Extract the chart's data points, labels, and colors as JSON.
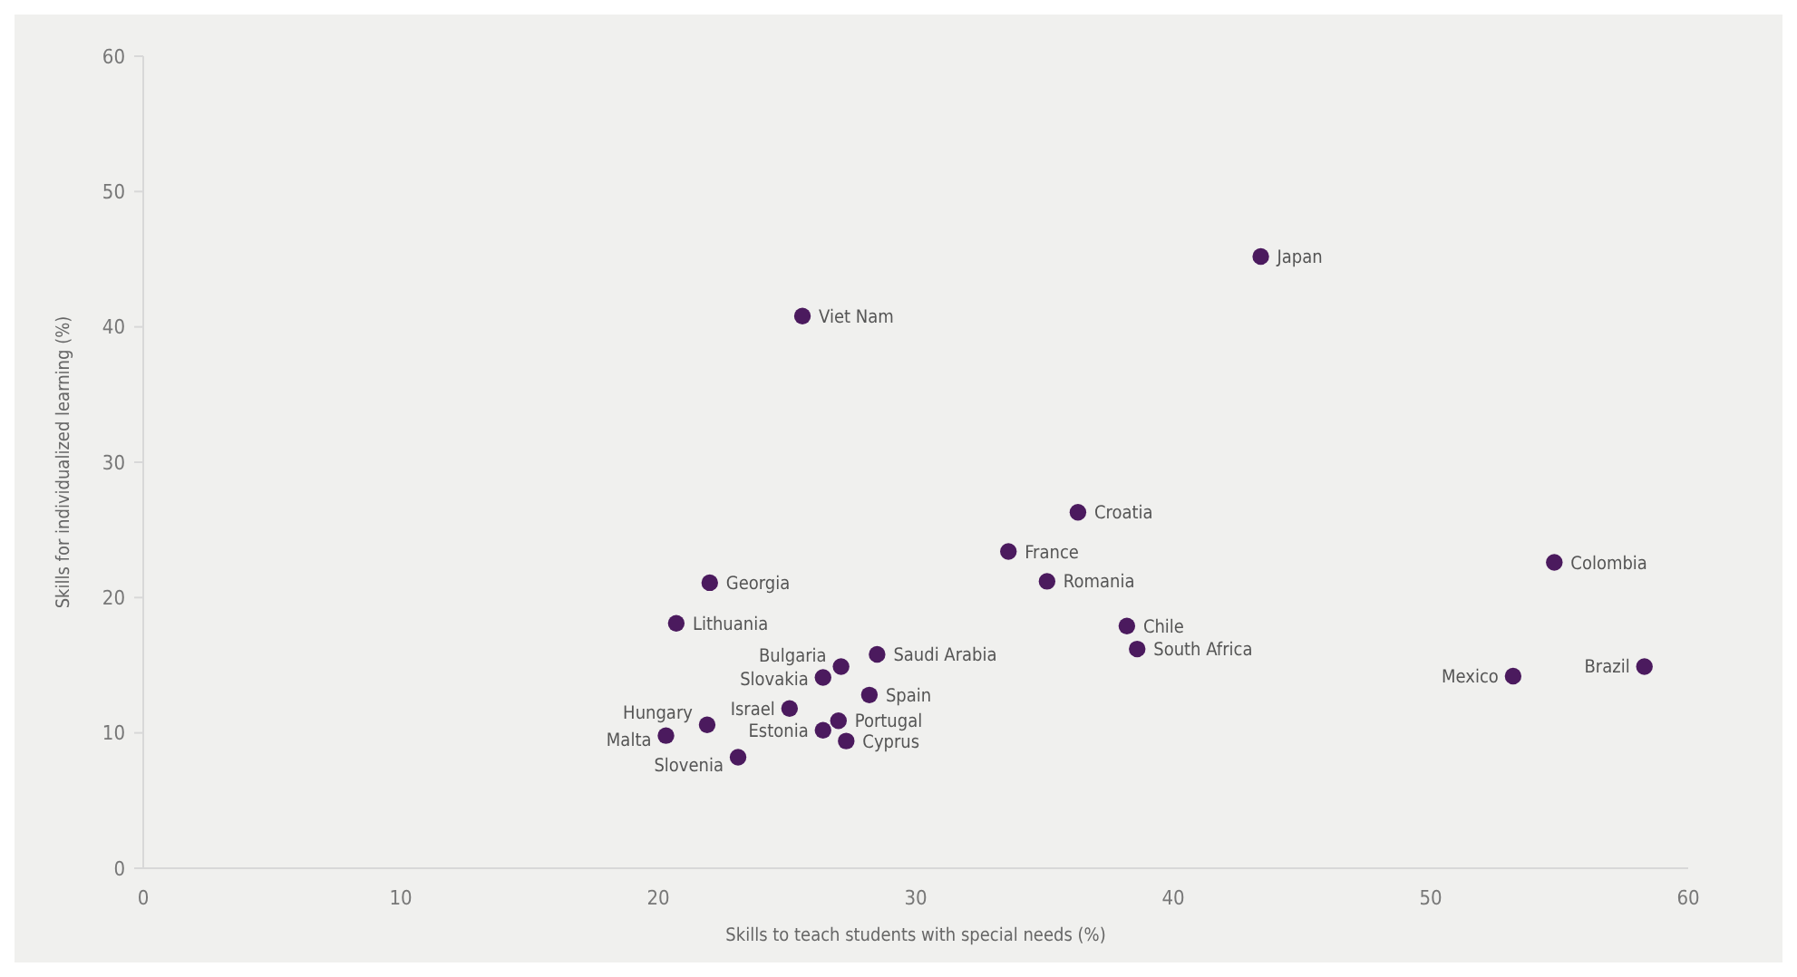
{
  "chart_data": {
    "type": "scatter",
    "xlabel": "Skills to teach students with special needs (%)",
    "ylabel": "Skills for individualized learning (%)",
    "xlim": [
      0,
      60
    ],
    "ylim": [
      0,
      60
    ],
    "xticks": [
      0,
      10,
      20,
      30,
      40,
      50,
      60
    ],
    "yticks": [
      0,
      10,
      20,
      30,
      40,
      50,
      60
    ],
    "grid": false,
    "marker": "circle",
    "series": [
      {
        "color": "#4b1a5e",
        "x": [
          43.4,
          25.6,
          36.3,
          33.6,
          35.1,
          54.8,
          22.0,
          20.7,
          38.2,
          38.6,
          53.2,
          58.3,
          28.5,
          27.1,
          26.4,
          28.2,
          25.1,
          21.9,
          27.0,
          26.4,
          20.3,
          27.3,
          23.1
        ],
        "values": [
          45.2,
          40.8,
          26.3,
          23.4,
          21.2,
          22.6,
          21.1,
          18.1,
          17.9,
          16.2,
          14.2,
          14.9,
          15.8,
          14.9,
          14.1,
          12.8,
          11.8,
          10.6,
          10.9,
          10.2,
          9.8,
          9.4,
          8.2
        ]
      }
    ],
    "annotations": [
      {
        "text": "Japan",
        "x": 43.4,
        "y": 45.2
      },
      {
        "text": "Viet Nam",
        "x": 25.6,
        "y": 40.8
      },
      {
        "text": "Croatia",
        "x": 36.3,
        "y": 26.3
      },
      {
        "text": "France",
        "x": 33.6,
        "y": 23.4
      },
      {
        "text": "Romania",
        "x": 35.1,
        "y": 21.2
      },
      {
        "text": "Colombia",
        "x": 54.8,
        "y": 22.6
      },
      {
        "text": "Georgia",
        "x": 22.0,
        "y": 21.1
      },
      {
        "text": "Lithuania",
        "x": 20.7,
        "y": 18.1
      },
      {
        "text": "Chile",
        "x": 38.2,
        "y": 17.9
      },
      {
        "text": "South Africa",
        "x": 38.6,
        "y": 16.2
      },
      {
        "text": "Mexico",
        "x": 53.2,
        "y": 14.2
      },
      {
        "text": "Brazil",
        "x": 58.3,
        "y": 14.9
      },
      {
        "text": "Saudi Arabia",
        "x": 28.5,
        "y": 15.8
      },
      {
        "text": "Bulgaria",
        "x": 27.1,
        "y": 14.9
      },
      {
        "text": "Slovakia",
        "x": 26.4,
        "y": 14.1
      },
      {
        "text": "Spain",
        "x": 28.2,
        "y": 12.8
      },
      {
        "text": "Israel",
        "x": 25.1,
        "y": 11.8
      },
      {
        "text": "Hungary",
        "x": 21.9,
        "y": 10.6
      },
      {
        "text": "Portugal",
        "x": 27.0,
        "y": 10.9
      },
      {
        "text": "Estonia",
        "x": 26.4,
        "y": 10.2
      },
      {
        "text": "Malta",
        "x": 20.3,
        "y": 9.8
      },
      {
        "text": "Cyprus",
        "x": 27.3,
        "y": 9.4
      },
      {
        "text": "Slovenia",
        "x": 23.1,
        "y": 8.2
      }
    ]
  }
}
